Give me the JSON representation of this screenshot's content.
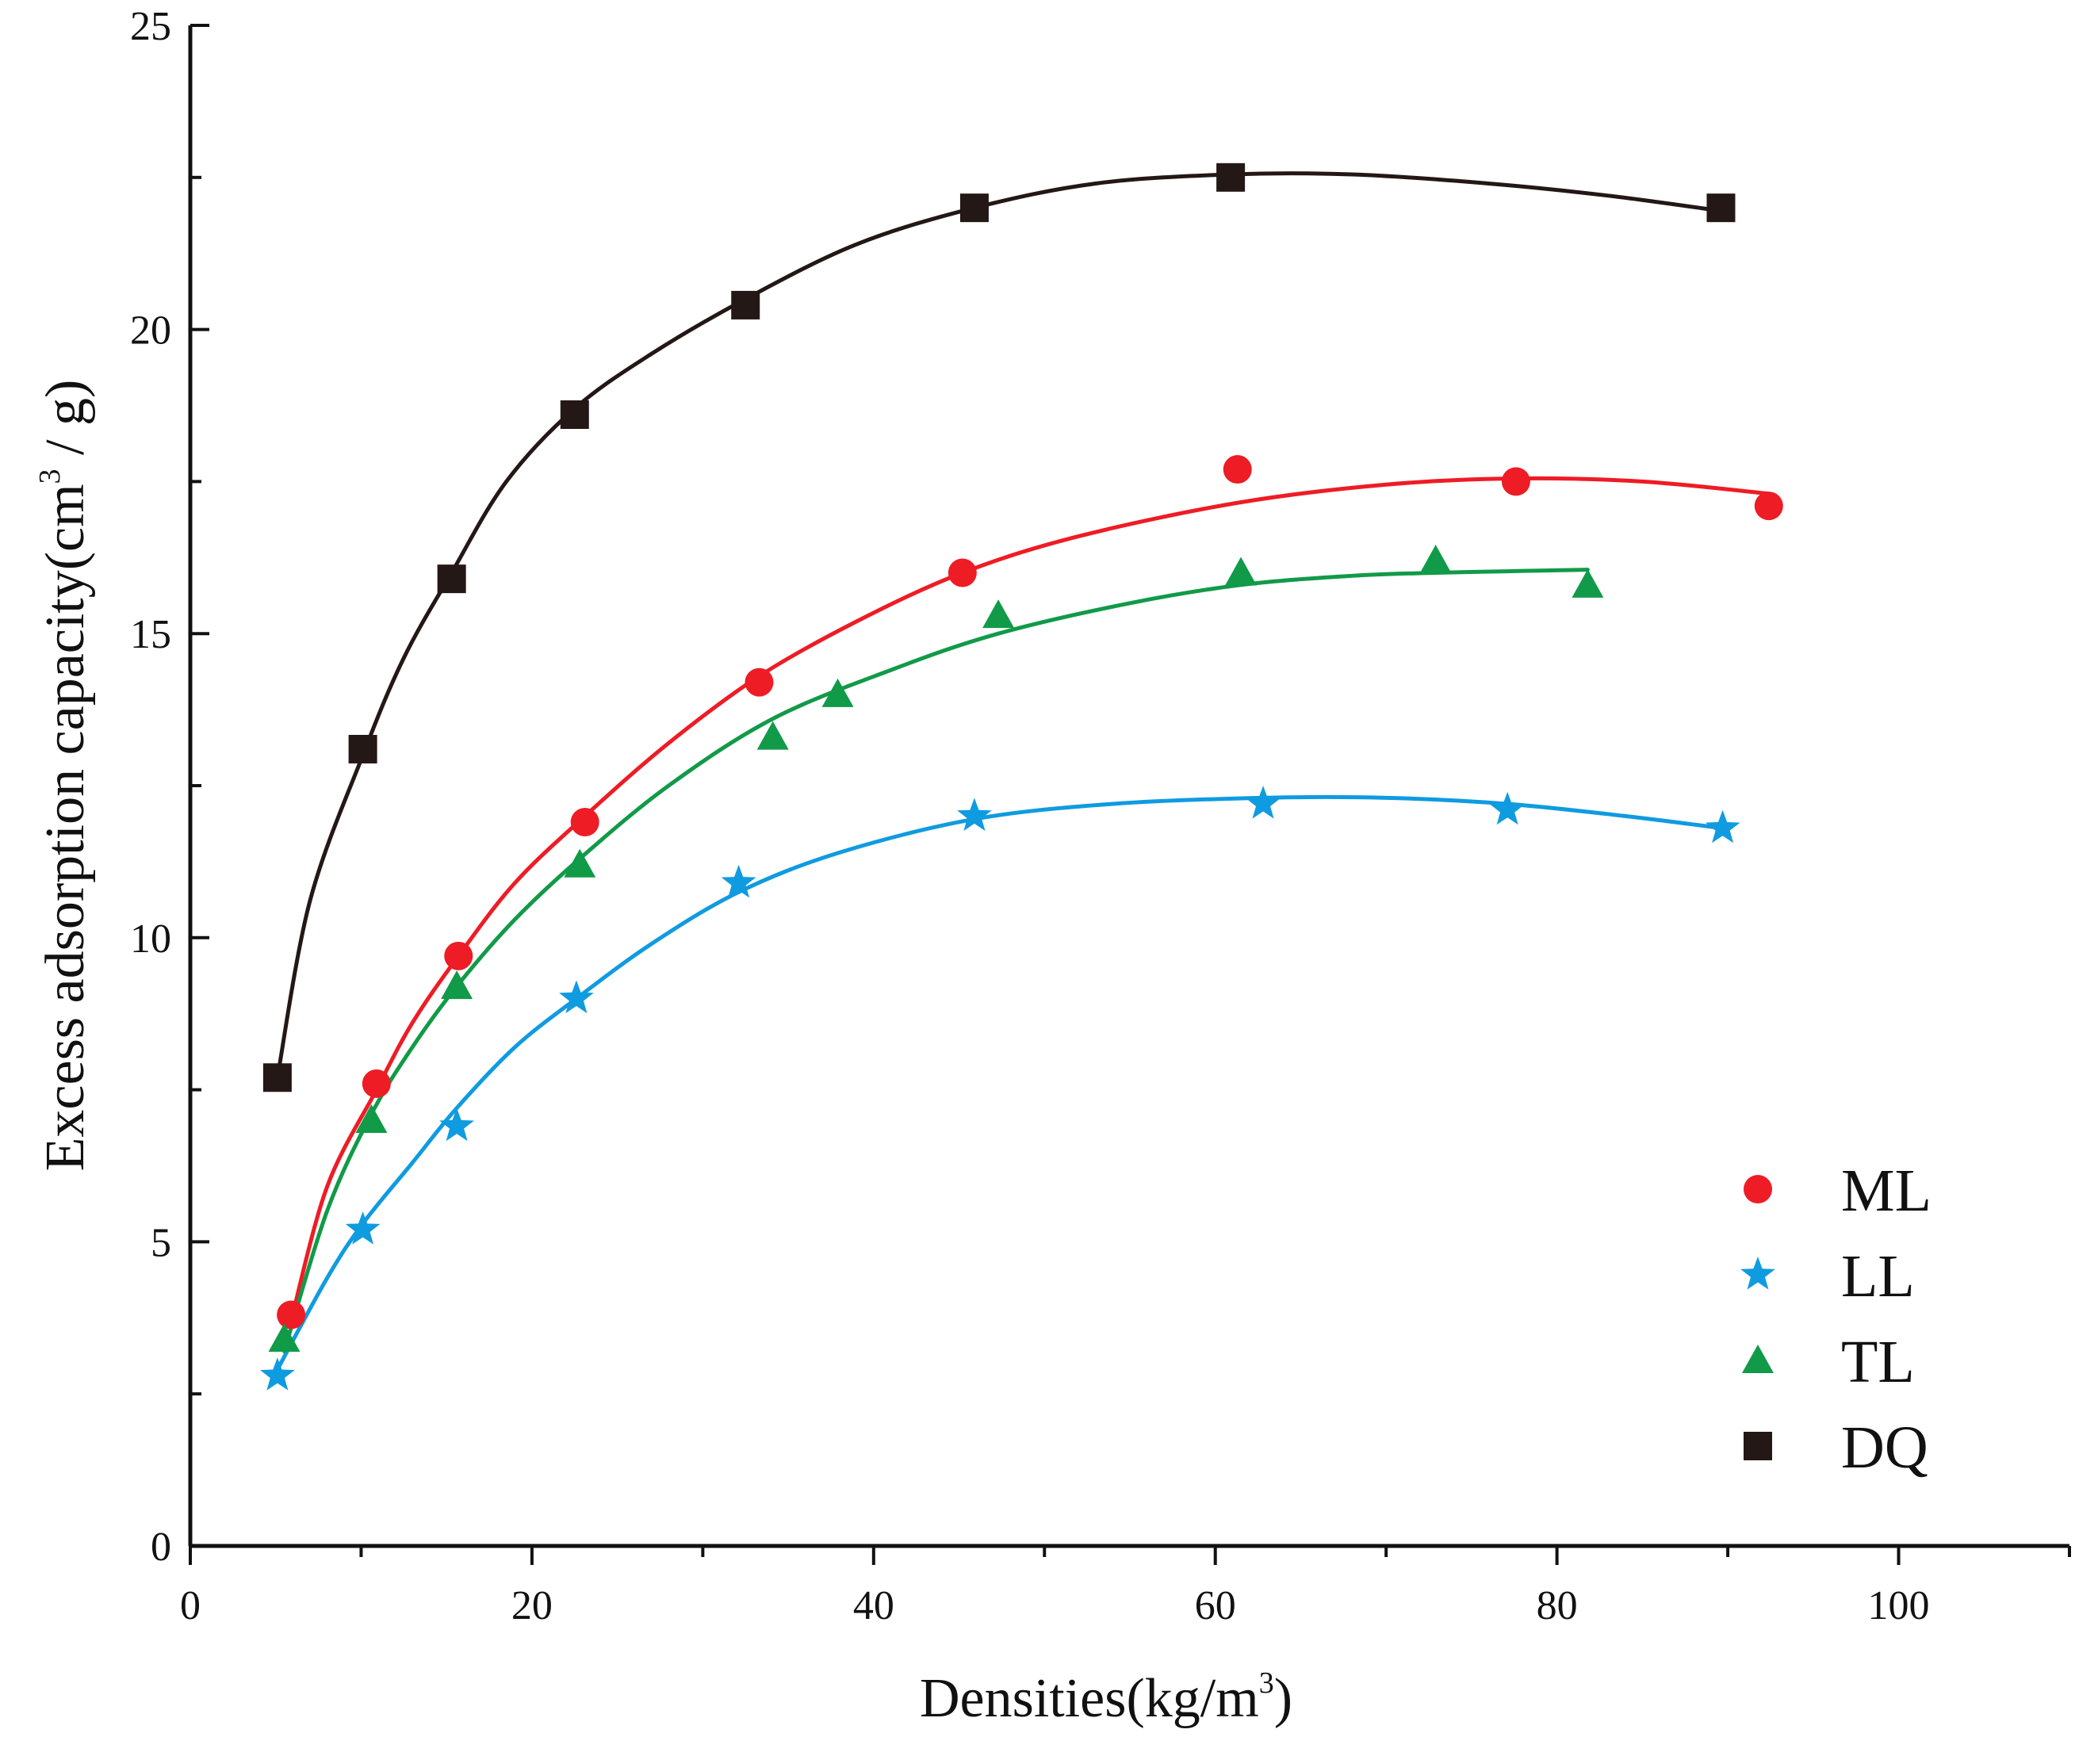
{
  "chart_data": {
    "type": "scatter",
    "title": "",
    "xlabel": "Densities(kg/m",
    "xlabel_sup": "3",
    "xlabel_end": ")",
    "ylabel": "Excess adsorption capacity(cm",
    "ylabel_sup": "3",
    "ylabel_end": " / g)",
    "xlim": [
      0,
      110
    ],
    "ylim": [
      0,
      25
    ],
    "x_ticks": [
      0,
      20,
      40,
      60,
      80,
      100
    ],
    "x_tick_labels": [
      "0",
      "20",
      "40",
      "60",
      "80",
      "100"
    ],
    "y_ticks": [
      0,
      5,
      10,
      15,
      20,
      25
    ],
    "y_tick_labels": [
      "0",
      "5",
      "10",
      "15",
      "20",
      "25"
    ],
    "grid": false,
    "legend_position": "bottom-right",
    "series": [
      {
        "name": "ML",
        "marker": "circle",
        "color": "#ee1c25",
        "x": [
          5.9,
          10.9,
          15.7,
          23.1,
          33.3,
          45.2,
          61.3,
          77.6,
          92.4
        ],
        "y": [
          3.8,
          7.6,
          9.7,
          11.9,
          14.2,
          16.0,
          17.7,
          17.5,
          17.1
        ],
        "fit_x": [
          5.9,
          8,
          10.9,
          13,
          15.7,
          19,
          23.1,
          28,
          33.3,
          39,
          45.2,
          52,
          61.3,
          70,
          77.6,
          85,
          92.4
        ],
        "fit_y": [
          3.7,
          5.9,
          7.5,
          8.6,
          9.7,
          10.9,
          12.0,
          13.2,
          14.3,
          15.2,
          16.0,
          16.6,
          17.15,
          17.45,
          17.55,
          17.5,
          17.3
        ]
      },
      {
        "name": "LL",
        "marker": "star",
        "color": "#0f9be0",
        "x": [
          5.1,
          10.1,
          15.6,
          22.6,
          32.1,
          45.9,
          62.8,
          77.1,
          89.7
        ],
        "y": [
          2.8,
          5.2,
          6.9,
          9.0,
          10.9,
          12.0,
          12.2,
          12.1,
          11.8
        ],
        "fit_x": [
          5.1,
          8,
          10.1,
          13,
          15.6,
          19,
          22.6,
          27,
          32.1,
          38,
          45.9,
          54,
          62.8,
          70,
          77.1,
          84,
          89.7
        ],
        "fit_y": [
          2.9,
          4.4,
          5.3,
          6.3,
          7.2,
          8.2,
          9.0,
          9.9,
          10.75,
          11.4,
          11.95,
          12.2,
          12.3,
          12.3,
          12.2,
          12.0,
          11.8
        ]
      },
      {
        "name": "TL",
        "marker": "triangle",
        "color": "#119a48",
        "x": [
          5.5,
          10.6,
          15.6,
          22.8,
          34.1,
          37.9,
          47.3,
          61.5,
          72.9,
          81.8
        ],
        "y": [
          3.4,
          7.0,
          9.2,
          11.2,
          13.3,
          14.0,
          15.3,
          16.0,
          16.2,
          15.8
        ],
        "fit_x": [
          5.5,
          8,
          10.6,
          13,
          15.6,
          19,
          22.8,
          28,
          34.1,
          41,
          47.3,
          55,
          61.5,
          68,
          72.9,
          78,
          81.8
        ],
        "fit_y": [
          3.2,
          5.5,
          7.1,
          8.2,
          9.2,
          10.3,
          11.3,
          12.5,
          13.6,
          14.4,
          15.0,
          15.5,
          15.8,
          15.95,
          16.0,
          16.03,
          16.05
        ]
      },
      {
        "name": "DQ",
        "marker": "square",
        "color": "#231815",
        "x": [
          5.1,
          10.1,
          15.3,
          22.5,
          32.5,
          45.9,
          60.9,
          89.6
        ],
        "y": [
          7.7,
          13.1,
          15.9,
          18.6,
          20.4,
          22.0,
          22.5,
          22.0
        ],
        "fit_x": [
          5.1,
          7,
          10.1,
          12.5,
          15.3,
          18.5,
          22.5,
          27,
          32.5,
          39,
          45.9,
          53,
          60.9,
          68,
          76,
          83,
          89.6
        ],
        "fit_y": [
          7.7,
          10.6,
          13.0,
          14.6,
          16.0,
          17.5,
          18.7,
          19.6,
          20.5,
          21.4,
          22.0,
          22.4,
          22.55,
          22.55,
          22.4,
          22.2,
          21.95
        ]
      }
    ]
  }
}
